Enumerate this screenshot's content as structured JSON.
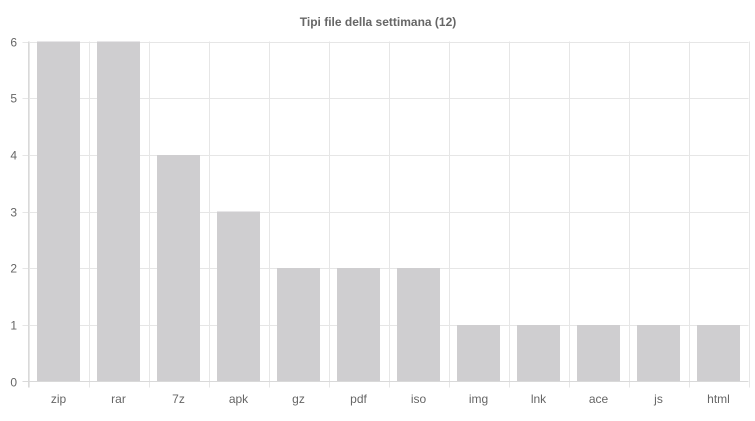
{
  "chart_data": {
    "type": "bar",
    "title": "Tipi file della settimana (12)",
    "xlabel": "",
    "ylabel": "",
    "categories": [
      "zip",
      "rar",
      "7z",
      "apk",
      "gz",
      "pdf",
      "iso",
      "img",
      "lnk",
      "ace",
      "js",
      "html"
    ],
    "values": [
      6,
      6,
      4,
      3,
      2,
      2,
      2,
      1,
      1,
      1,
      1,
      1
    ],
    "ylim": [
      0,
      6
    ],
    "yticks": [
      0,
      1,
      2,
      3,
      4,
      5,
      6
    ],
    "grid": true,
    "legend": "none",
    "bar_color": "#cfced0",
    "grid_color": "#e6e6e6",
    "text_color": "#666666"
  }
}
